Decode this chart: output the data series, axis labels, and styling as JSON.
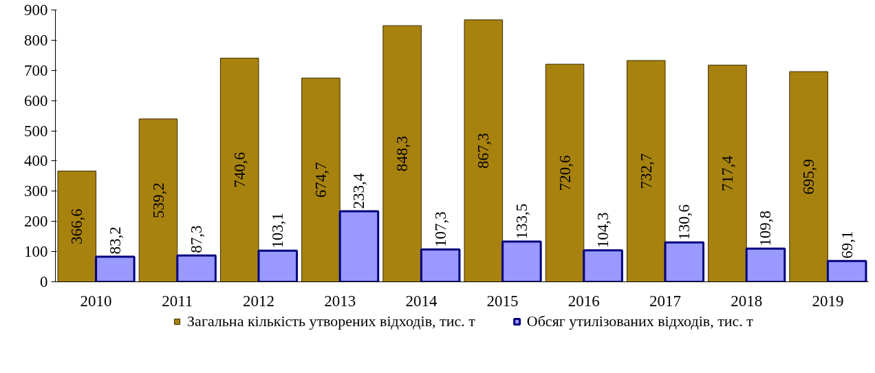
{
  "chart_data": {
    "type": "bar",
    "categories": [
      "2010",
      "2011",
      "2012",
      "2013",
      "2014",
      "2015",
      "2016",
      "2017",
      "2018",
      "2019"
    ],
    "series": [
      {
        "name": "Загальна кількість утворених відходів, тис. т",
        "color": "#a8820f",
        "values": [
          366.6,
          539.2,
          740.6,
          674.7,
          848.3,
          867.3,
          720.6,
          732.7,
          717.4,
          695.9
        ],
        "value_labels": [
          "366,6",
          "539,2",
          "740,6",
          "674,7",
          "848,3",
          "867,3",
          "720,6",
          "732,7",
          "717,4",
          "695,9"
        ]
      },
      {
        "name": "Обсяг утилізованих відходів, тис. т",
        "color": "#9999ff",
        "values": [
          83.2,
          87.3,
          103.1,
          233.4,
          107.3,
          133.5,
          104.3,
          130.6,
          109.8,
          69.1
        ],
        "value_labels": [
          "83,2",
          "87,3",
          "103,1",
          "233,4",
          "107,3",
          "133,5",
          "104,3",
          "130,6",
          "109,8",
          "69,1"
        ]
      }
    ],
    "ylim": [
      0,
      900
    ],
    "yticks": [
      0,
      100,
      200,
      300,
      400,
      500,
      600,
      700,
      800,
      900
    ],
    "grid": false,
    "legend": "bottom"
  }
}
